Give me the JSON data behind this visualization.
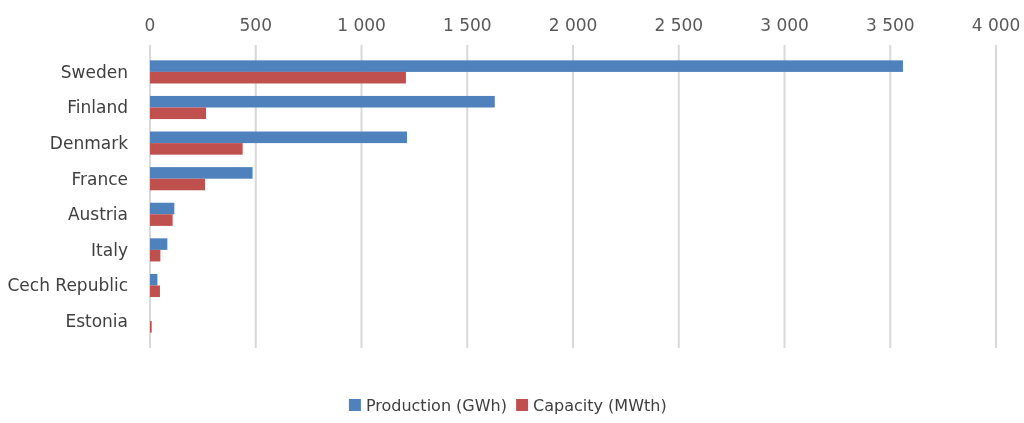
{
  "chart_data": {
    "type": "bar",
    "orientation": "horizontal",
    "categories": [
      "Sweden",
      "Finland",
      "Denmark",
      "France",
      "Austria",
      "Italy",
      "Cech Republic",
      "Estonia"
    ],
    "series": [
      {
        "name": "Production (GWh)",
        "color": "#4f81bd",
        "values": [
          3560,
          1630,
          1215,
          485,
          115,
          82,
          35,
          0
        ]
      },
      {
        "name": "Capacity (MWth)",
        "color": "#c0504d",
        "values": [
          1210,
          265,
          438,
          260,
          107,
          49,
          47,
          8
        ]
      }
    ],
    "xlim": [
      0,
      4000
    ],
    "xticks": [
      0,
      500,
      {
        "value": 1000,
        "label": "1 000"
      },
      {
        "value": 1500,
        "label": "1 500"
      },
      {
        "value": 2000,
        "label": "2 000"
      },
      {
        "value": 2500,
        "label": "2 500"
      },
      {
        "value": 3000,
        "label": "3 000"
      },
      {
        "value": 3500,
        "label": "3 500"
      },
      {
        "value": 4000,
        "label": "4 000"
      }
    ],
    "grid": "x",
    "legend": "bottom"
  }
}
